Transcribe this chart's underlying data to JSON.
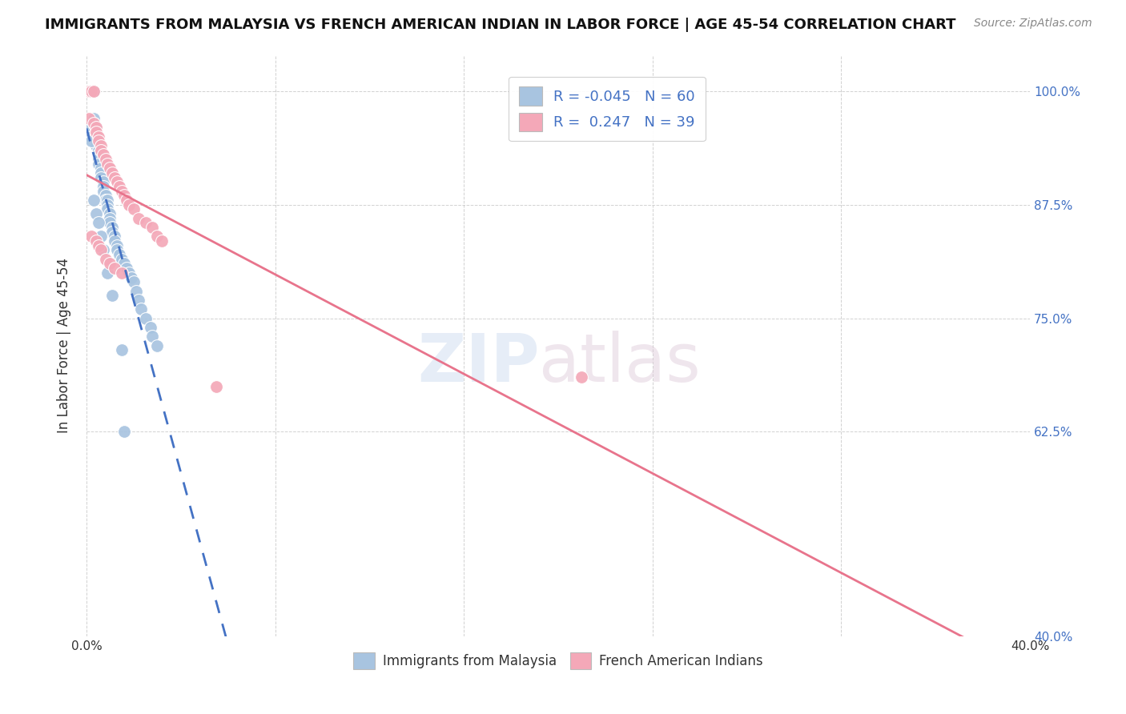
{
  "title": "IMMIGRANTS FROM MALAYSIA VS FRENCH AMERICAN INDIAN IN LABOR FORCE | AGE 45-54 CORRELATION CHART",
  "source": "Source: ZipAtlas.com",
  "ylabel": "In Labor Force | Age 45-54",
  "xlim": [
    0.0,
    0.4
  ],
  "ylim": [
    0.4,
    1.04
  ],
  "xticks": [
    0.0,
    0.08,
    0.16,
    0.24,
    0.32,
    0.4
  ],
  "xticklabels": [
    "0.0%",
    "",
    "",
    "",
    "",
    "40.0%"
  ],
  "yticks": [
    0.4,
    0.625,
    0.75,
    0.875,
    1.0
  ],
  "yticklabels": [
    "40.0%",
    "62.5%",
    "75.0%",
    "87.5%",
    "100.0%"
  ],
  "blue_R": -0.045,
  "blue_N": 60,
  "pink_R": 0.247,
  "pink_N": 39,
  "blue_color": "#a8c4e0",
  "pink_color": "#f4a8b8",
  "blue_line_color": "#4472c4",
  "pink_line_color": "#e8748c",
  "right_axis_color": "#4472c4",
  "blue_x": [
    0.001,
    0.002,
    0.002,
    0.003,
    0.003,
    0.003,
    0.003,
    0.004,
    0.004,
    0.004,
    0.004,
    0.004,
    0.005,
    0.005,
    0.005,
    0.005,
    0.006,
    0.006,
    0.006,
    0.007,
    0.007,
    0.007,
    0.008,
    0.008,
    0.009,
    0.009,
    0.009,
    0.01,
    0.01,
    0.01,
    0.011,
    0.011,
    0.012,
    0.012,
    0.013,
    0.013,
    0.014,
    0.015,
    0.016,
    0.017,
    0.018,
    0.019,
    0.02,
    0.021,
    0.022,
    0.023,
    0.025,
    0.027,
    0.028,
    0.03,
    0.002,
    0.003,
    0.004,
    0.005,
    0.006,
    0.007,
    0.009,
    0.011,
    0.015,
    0.016
  ],
  "blue_y": [
    0.96,
    1.0,
    0.95,
    1.0,
    1.0,
    0.97,
    0.965,
    0.96,
    0.955,
    0.95,
    0.945,
    0.94,
    0.935,
    0.93,
    0.925,
    0.92,
    0.915,
    0.91,
    0.905,
    0.9,
    0.895,
    0.89,
    0.885,
    0.88,
    0.88,
    0.875,
    0.87,
    0.865,
    0.86,
    0.855,
    0.85,
    0.845,
    0.84,
    0.835,
    0.83,
    0.825,
    0.82,
    0.815,
    0.81,
    0.805,
    0.8,
    0.795,
    0.79,
    0.78,
    0.77,
    0.76,
    0.75,
    0.74,
    0.73,
    0.72,
    0.945,
    0.88,
    0.865,
    0.855,
    0.84,
    0.825,
    0.8,
    0.775,
    0.715,
    0.625
  ],
  "pink_x": [
    0.001,
    0.001,
    0.002,
    0.003,
    0.003,
    0.004,
    0.004,
    0.005,
    0.005,
    0.006,
    0.006,
    0.007,
    0.008,
    0.009,
    0.01,
    0.011,
    0.012,
    0.013,
    0.014,
    0.015,
    0.016,
    0.017,
    0.018,
    0.02,
    0.022,
    0.025,
    0.028,
    0.03,
    0.032,
    0.002,
    0.004,
    0.005,
    0.006,
    0.008,
    0.01,
    0.012,
    0.015,
    0.055,
    0.21
  ],
  "pink_y": [
    1.0,
    0.97,
    1.0,
    1.0,
    0.965,
    0.96,
    0.955,
    0.95,
    0.945,
    0.94,
    0.935,
    0.93,
    0.925,
    0.92,
    0.915,
    0.91,
    0.905,
    0.9,
    0.895,
    0.89,
    0.885,
    0.88,
    0.875,
    0.87,
    0.86,
    0.855,
    0.85,
    0.84,
    0.835,
    0.84,
    0.835,
    0.83,
    0.825,
    0.815,
    0.81,
    0.805,
    0.8,
    0.675,
    0.685
  ]
}
